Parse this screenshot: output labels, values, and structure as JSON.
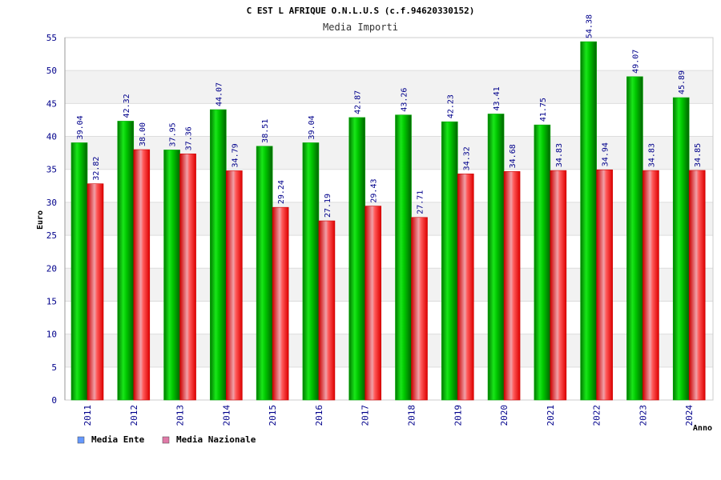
{
  "chart_data": {
    "type": "bar",
    "title": "C EST L AFRIQUE O.N.L.U.S (c.f.94620330152)",
    "subtitle": "Media Importi",
    "xlabel": "Anno",
    "ylabel": "Euro",
    "ylim": [
      0,
      55
    ],
    "yticks": [
      "0",
      "5",
      "10",
      "15",
      "20",
      "25",
      "30",
      "35",
      "40",
      "45",
      "50",
      "55"
    ],
    "grid": true,
    "legend_position": "bottom-left",
    "categories": [
      "2011",
      "2012",
      "2013",
      "2014",
      "2015",
      "2016",
      "2017",
      "2018",
      "2019",
      "2020",
      "2021",
      "2022",
      "2023",
      "2024"
    ],
    "series": [
      {
        "name": "Media Ente",
        "legend_color": "#6699ff",
        "bar_color": "#00cc00",
        "values": [
          39.04,
          42.32,
          37.95,
          44.07,
          38.51,
          39.04,
          42.87,
          43.26,
          42.23,
          43.41,
          41.75,
          54.38,
          49.07,
          45.89
        ],
        "labels": [
          "39.04",
          "42.32",
          "37.95",
          "44.07",
          "38.51",
          "39.04",
          "42.87",
          "43.26",
          "42.23",
          "43.41",
          "41.75",
          "54.38",
          "49.07",
          "45.89"
        ]
      },
      {
        "name": "Media Nazionale",
        "legend_color": "#e07aa8",
        "bar_color": "#ff1a1a",
        "values": [
          32.82,
          38.0,
          37.36,
          34.79,
          29.24,
          27.19,
          29.43,
          27.71,
          34.32,
          34.68,
          34.83,
          34.94,
          34.83,
          34.85
        ],
        "labels": [
          "32.82",
          "38.00",
          "37.36",
          "34.79",
          "29.24",
          "27.19",
          "29.43",
          "27.71",
          "34.32",
          "34.68",
          "34.83",
          "34.94",
          "34.83",
          "34.85"
        ]
      }
    ]
  }
}
